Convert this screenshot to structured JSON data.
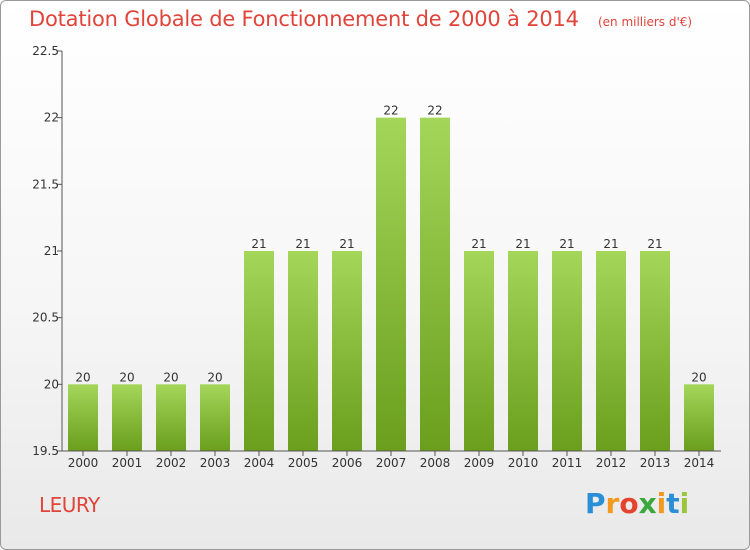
{
  "chart_data": {
    "type": "bar",
    "title": "Dotation Globale de Fonctionnement de 2000 à 2014",
    "unit": "(en milliers d'€)",
    "xlabel": "",
    "ylabel": "",
    "categories": [
      "2000",
      "2001",
      "2002",
      "2003",
      "2004",
      "2005",
      "2006",
      "2007",
      "2008",
      "2009",
      "2010",
      "2011",
      "2012",
      "2013",
      "2014"
    ],
    "values": [
      20,
      20,
      20,
      20,
      21,
      21,
      21,
      22,
      22,
      21,
      21,
      21,
      21,
      21,
      20
    ],
    "data_labels": [
      "20",
      "20",
      "20",
      "20",
      "21",
      "21",
      "21",
      "22",
      "22",
      "21",
      "21",
      "21",
      "21",
      "21",
      "20"
    ],
    "ylim": [
      19.5,
      22.5
    ],
    "yticks": [
      19.5,
      20,
      20.5,
      21,
      21.5,
      22,
      22.5
    ],
    "ytick_labels": [
      "19.5",
      "20",
      "20.5",
      "21",
      "21.5",
      "22",
      "22.5"
    ],
    "grid": false,
    "bar_color_top": "#a4d65a",
    "bar_color_bottom": "#6a9e1c"
  },
  "commune": "LEURY",
  "brand": {
    "letters": [
      "P",
      "r",
      "o",
      "x",
      "i",
      "t",
      "i"
    ],
    "colors": [
      "#2a8fd6",
      "#f29a1f",
      "#e5432d",
      "#3aa83a",
      "#f29a1f",
      "#2a8fd6",
      "#9bc53d"
    ]
  },
  "colors": {
    "title": "#e0443a",
    "axis": "#555555"
  }
}
